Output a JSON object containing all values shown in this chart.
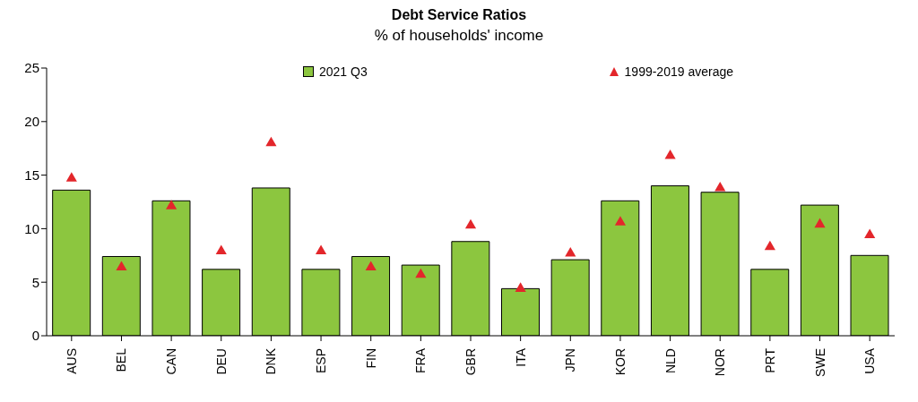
{
  "chart_data": {
    "type": "bar",
    "title": "Debt Service Ratios",
    "subtitle": "% of households' income",
    "categories": [
      "AUS",
      "BEL",
      "CAN",
      "DEU",
      "DNK",
      "ESP",
      "FIN",
      "FRA",
      "GBR",
      "ITA",
      "JPN",
      "KOR",
      "NLD",
      "NOR",
      "PRT",
      "SWE",
      "USA"
    ],
    "series": [
      {
        "name": "2021 Q3",
        "color": "#8cc63f",
        "values": [
          13.6,
          7.4,
          12.6,
          6.2,
          13.8,
          6.2,
          7.4,
          6.6,
          8.8,
          4.4,
          7.1,
          12.6,
          14.0,
          13.4,
          6.2,
          12.2,
          7.5
        ]
      },
      {
        "name": "1999-2019 average",
        "type": "scatter",
        "marker": "triangle",
        "color": "#e3262b",
        "values": [
          14.7,
          6.4,
          12.1,
          7.9,
          18.0,
          7.9,
          6.4,
          5.7,
          10.3,
          4.4,
          7.7,
          10.6,
          16.8,
          13.8,
          8.3,
          10.4,
          9.4
        ]
      }
    ],
    "ylim": [
      0,
      25
    ],
    "yticks": [
      0,
      5,
      10,
      15,
      20,
      25
    ],
    "legend": "top"
  }
}
